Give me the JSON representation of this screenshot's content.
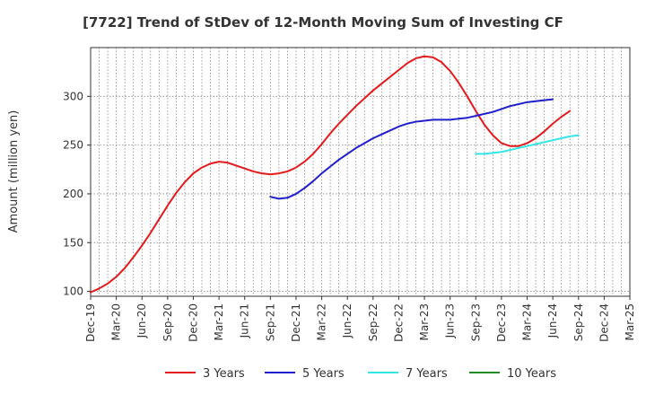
{
  "chart_data": {
    "type": "line",
    "title": "[7722]  Trend of StDev of 12-Month Moving Sum of Investing CF",
    "xlabel": "",
    "ylabel": "Amount (million yen)",
    "ylim": [
      95,
      350
    ],
    "yticks": [
      100,
      150,
      200,
      250,
      300
    ],
    "grid": true,
    "legend_position": "bottom",
    "x_tick_labels": [
      "Dec-19",
      "Mar-20",
      "Jun-20",
      "Sep-20",
      "Dec-20",
      "Mar-21",
      "Jun-21",
      "Sep-21",
      "Dec-21",
      "Mar-22",
      "Jun-22",
      "Sep-22",
      "Dec-22",
      "Mar-23",
      "Jun-23",
      "Sep-23",
      "Dec-23",
      "Mar-24",
      "Jun-24",
      "Sep-24",
      "Dec-24",
      "Mar-25"
    ],
    "x_months": [
      "2019-12",
      "2020-01",
      "2020-02",
      "2020-03",
      "2020-04",
      "2020-05",
      "2020-06",
      "2020-07",
      "2020-08",
      "2020-09",
      "2020-10",
      "2020-11",
      "2020-12",
      "2021-01",
      "2021-02",
      "2021-03",
      "2021-04",
      "2021-05",
      "2021-06",
      "2021-07",
      "2021-08",
      "2021-09",
      "2021-10",
      "2021-11",
      "2021-12",
      "2022-01",
      "2022-02",
      "2022-03",
      "2022-04",
      "2022-05",
      "2022-06",
      "2022-07",
      "2022-08",
      "2022-09",
      "2022-10",
      "2022-11",
      "2022-12",
      "2023-01",
      "2023-02",
      "2023-03",
      "2023-04",
      "2023-05",
      "2023-06",
      "2023-07",
      "2023-08",
      "2023-09",
      "2023-10",
      "2023-11",
      "2023-12",
      "2024-01",
      "2024-02",
      "2024-03",
      "2024-04",
      "2024-05",
      "2024-06",
      "2024-07",
      "2024-08",
      "2024-09",
      "2024-10",
      "2024-11",
      "2024-12",
      "2025-01",
      "2025-02",
      "2025-03"
    ],
    "series": [
      {
        "name": "3 Years",
        "color": "#e31a1c",
        "start": "2019-12",
        "values": [
          99,
          103,
          108,
          115,
          124,
          135,
          147,
          160,
          174,
          188,
          201,
          212,
          221,
          227,
          231,
          233,
          232,
          229,
          226,
          223,
          221,
          220,
          221,
          223,
          227,
          233,
          241,
          251,
          262,
          272,
          281,
          290,
          298,
          306,
          313,
          320,
          327,
          334,
          339,
          341,
          340,
          335,
          326,
          314,
          300,
          285,
          271,
          260,
          252,
          249,
          249,
          252,
          257,
          264,
          272,
          279,
          285
        ]
      },
      {
        "name": "5 Years",
        "color": "#1f1fce",
        "start": "2021-09",
        "values": [
          197,
          195,
          196,
          200,
          206,
          213,
          221,
          228,
          235,
          241,
          247,
          252,
          257,
          261,
          265,
          269,
          272,
          274,
          275,
          276,
          276,
          276,
          277,
          278,
          280,
          282,
          284,
          287,
          290,
          292,
          294,
          295,
          296,
          297
        ]
      },
      {
        "name": "7 Years",
        "color": "#33e6e6",
        "start": "2023-09",
        "values": [
          241,
          241,
          242,
          243,
          245,
          247,
          249,
          251,
          253,
          255,
          257,
          259,
          260
        ]
      },
      {
        "name": "10 Years",
        "color": "#228b22",
        "start": "2024-09",
        "values": []
      }
    ]
  }
}
